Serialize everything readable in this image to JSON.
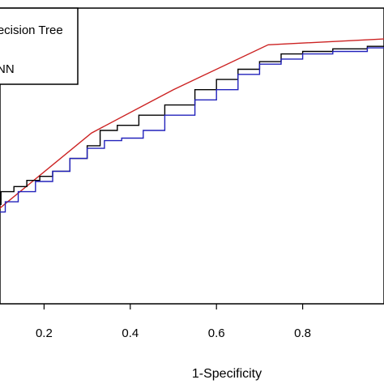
{
  "chart_data": {
    "type": "line",
    "title": "",
    "xlabel": "1-Specificity",
    "ylabel": "",
    "xlim": [
      0.0,
      1.0
    ],
    "ylim": [
      0.38,
      0.96
    ],
    "x_ticks": [
      0.2,
      0.4,
      0.6,
      0.8
    ],
    "x_tick_labels": [
      "0.2",
      "0.4",
      "0.6",
      "0.8"
    ],
    "grid": false,
    "legend": {
      "placement": "top-left",
      "entries": [
        "Decision Tree",
        "ANN"
      ]
    },
    "series": [
      {
        "name": "Decision Tree",
        "color": "#cc2222",
        "style": "line",
        "x": [
          0.0,
          0.31,
          0.5,
          0.72,
          1.0
        ],
        "y": [
          0.5,
          0.715,
          0.8,
          0.888,
          0.9
        ]
      },
      {
        "name": "ANN",
        "color": "#000000",
        "style": "step",
        "x": [
          0.0,
          0.02,
          0.05,
          0.07,
          0.1,
          0.13,
          0.16,
          0.19,
          0.22,
          0.26,
          0.3,
          0.33,
          0.37,
          0.42,
          0.48,
          0.55,
          0.6,
          0.65,
          0.7,
          0.75,
          0.8,
          0.87,
          0.95,
          1.0
        ],
        "y": [
          0.5,
          0.52,
          0.54,
          0.575,
          0.6,
          0.61,
          0.622,
          0.63,
          0.64,
          0.665,
          0.69,
          0.72,
          0.73,
          0.75,
          0.77,
          0.8,
          0.82,
          0.84,
          0.855,
          0.87,
          0.875,
          0.88,
          0.885,
          0.89
        ]
      },
      {
        "name": "",
        "color": "#2222bb",
        "style": "step",
        "x": [
          0.0,
          0.02,
          0.05,
          0.08,
          0.11,
          0.14,
          0.18,
          0.22,
          0.26,
          0.3,
          0.34,
          0.38,
          0.43,
          0.48,
          0.55,
          0.6,
          0.65,
          0.7,
          0.75,
          0.8,
          0.87,
          0.95,
          1.0
        ],
        "y": [
          0.5,
          0.51,
          0.53,
          0.56,
          0.58,
          0.6,
          0.62,
          0.64,
          0.665,
          0.685,
          0.7,
          0.705,
          0.72,
          0.75,
          0.78,
          0.8,
          0.83,
          0.85,
          0.86,
          0.87,
          0.875,
          0.882,
          0.888
        ]
      }
    ]
  }
}
